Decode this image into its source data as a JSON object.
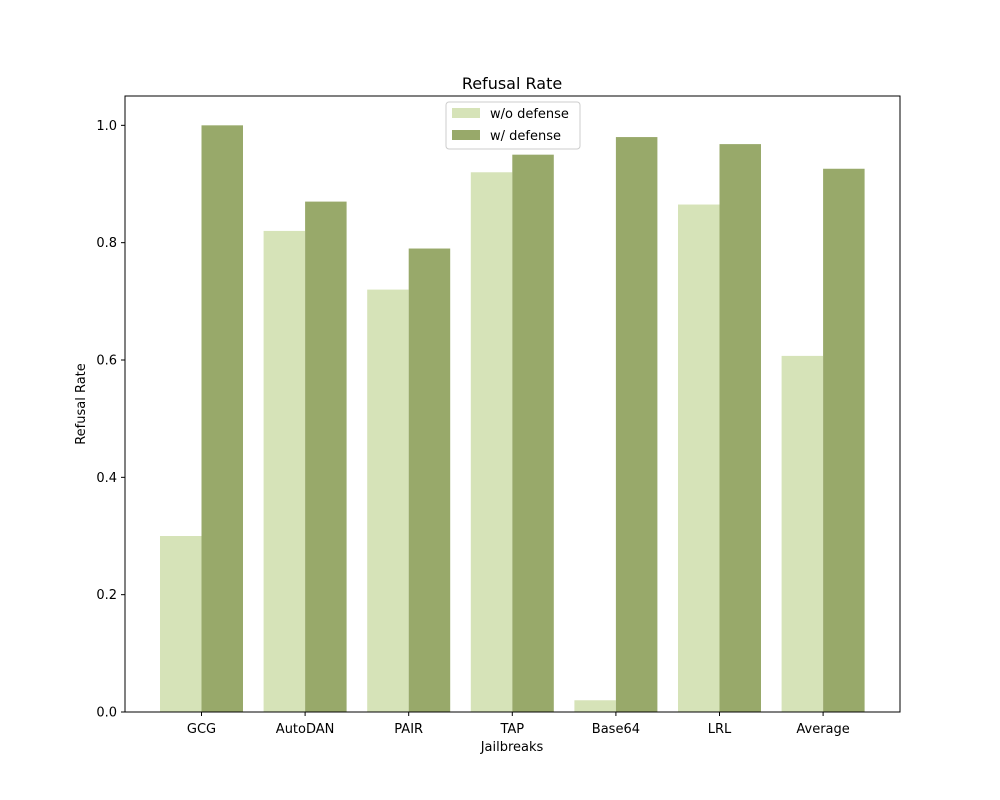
{
  "chart_data": {
    "type": "bar",
    "title": "Refusal Rate",
    "xlabel": "Jailbreaks",
    "ylabel": "Refusal Rate",
    "categories": [
      "GCG",
      "AutoDAN",
      "PAIR",
      "TAP",
      "Base64",
      "LRL",
      "Average"
    ],
    "series": [
      {
        "name": "w/o defense",
        "color": "#d6e3b8",
        "values": [
          0.3,
          0.82,
          0.72,
          0.92,
          0.02,
          0.865,
          0.607
        ]
      },
      {
        "name": "w/ defense",
        "color": "#98a96a",
        "values": [
          1.0,
          0.87,
          0.79,
          0.95,
          0.98,
          0.968,
          0.926
        ]
      }
    ],
    "ylim": [
      0,
      1.05
    ],
    "yticks": [
      0.0,
      0.2,
      0.4,
      0.6,
      0.8,
      1.0
    ],
    "ytick_labels": [
      "0.0",
      "0.2",
      "0.4",
      "0.6",
      "0.8",
      "1.0"
    ],
    "legend_position": "upper-center",
    "grid": false
  }
}
